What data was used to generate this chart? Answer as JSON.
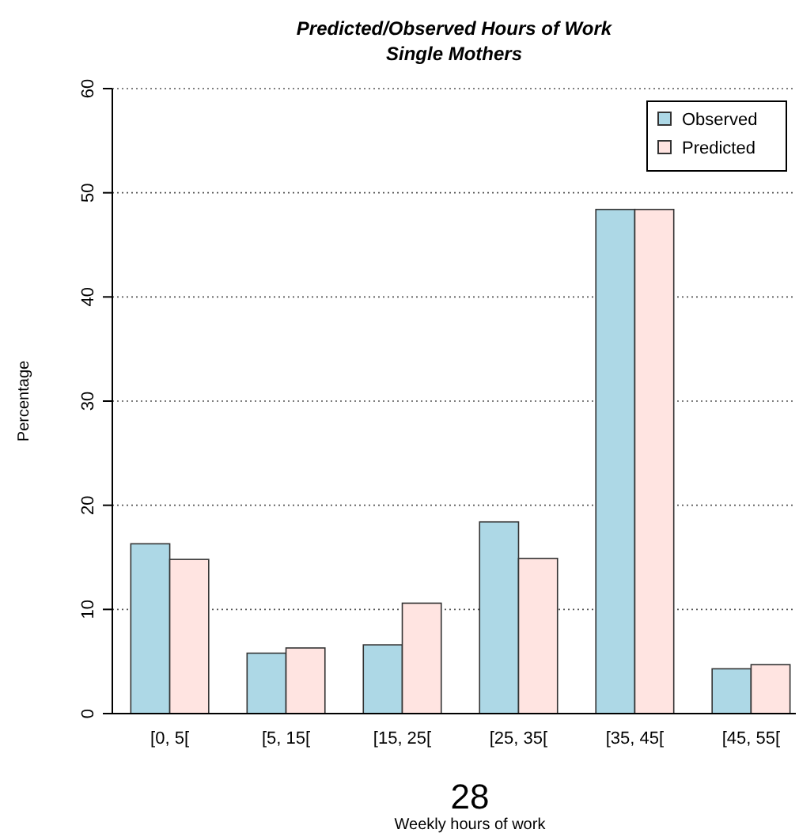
{
  "chart_data": {
    "type": "bar",
    "title": "Predicted/Observed Hours of Work",
    "subtitle": "Single Mothers",
    "xlabel": "Weekly hours of work",
    "ylabel": "Percentage",
    "categories": [
      "[0, 5[",
      "[5, 15[",
      "[15, 25[",
      "[25, 35[",
      "[35, 45[",
      "[45, 55["
    ],
    "series": [
      {
        "name": "Observed",
        "color": "#add8e6",
        "values": [
          16.3,
          5.8,
          6.6,
          18.4,
          48.4,
          4.3
        ]
      },
      {
        "name": "Predicted",
        "color": "#ffe4e1",
        "values": [
          14.8,
          6.3,
          10.6,
          14.9,
          48.4,
          4.7
        ]
      }
    ],
    "ylim": [
      0,
      60
    ],
    "yticks": [
      0,
      10,
      20,
      30,
      40,
      50,
      60
    ],
    "grid": "y",
    "legend": "top right",
    "annotations": [
      "28"
    ]
  }
}
